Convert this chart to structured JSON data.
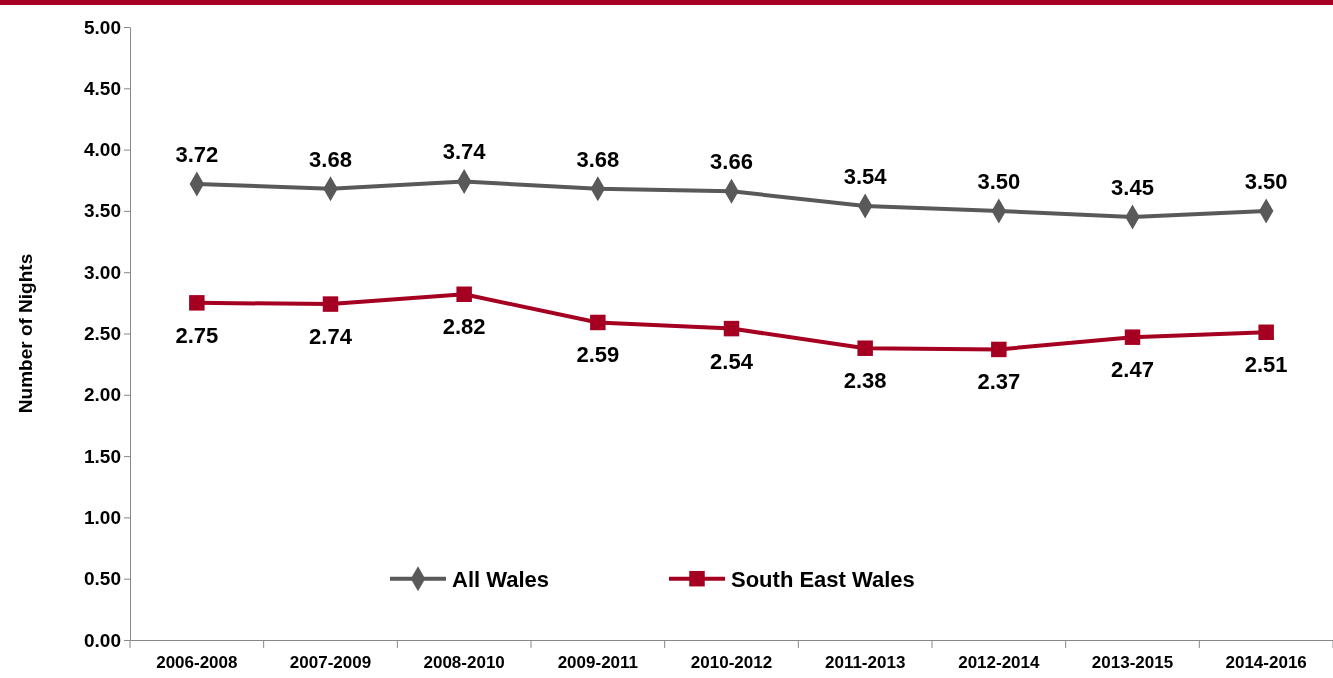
{
  "chart_data": {
    "type": "line",
    "ylabel": "Number of Nights",
    "categories": [
      "2006-2008",
      "2007-2009",
      "2008-2010",
      "2009-2011",
      "2010-2012",
      "2011-2013",
      "2012-2014",
      "2013-2015",
      "2014-2016"
    ],
    "series": [
      {
        "name": "All Wales",
        "color": "#595959",
        "marker": "diamond",
        "values": [
          3.72,
          3.68,
          3.74,
          3.68,
          3.66,
          3.54,
          3.5,
          3.45,
          3.5
        ],
        "value_labels": [
          "3.72",
          "3.68",
          "3.74",
          "3.68",
          "3.66",
          "3.54",
          "3.50",
          "3.45",
          "3.50"
        ]
      },
      {
        "name": "South East Wales",
        "color": "#a50021",
        "marker": "square",
        "values": [
          2.75,
          2.74,
          2.82,
          2.59,
          2.54,
          2.38,
          2.37,
          2.47,
          2.51
        ],
        "value_labels": [
          "2.75",
          "2.74",
          "2.82",
          "2.59",
          "2.54",
          "2.38",
          "2.37",
          "2.47",
          "2.51"
        ]
      }
    ],
    "ylim": [
      0,
      5
    ],
    "yticks": [
      {
        "value": 0,
        "label": "0.00"
      },
      {
        "value": 0.5,
        "label": "0.50"
      },
      {
        "value": 1,
        "label": "1.00"
      },
      {
        "value": 1.5,
        "label": "1.50"
      },
      {
        "value": 2,
        "label": "2.00"
      },
      {
        "value": 2.5,
        "label": "2.50"
      },
      {
        "value": 3,
        "label": "3.00"
      },
      {
        "value": 3.5,
        "label": "3.50"
      },
      {
        "value": 4,
        "label": "4.00"
      },
      {
        "value": 4.5,
        "label": "4.50"
      },
      {
        "value": 5,
        "label": "5.00"
      }
    ],
    "grid": false,
    "legend": "bottom",
    "line_style": "solid"
  }
}
